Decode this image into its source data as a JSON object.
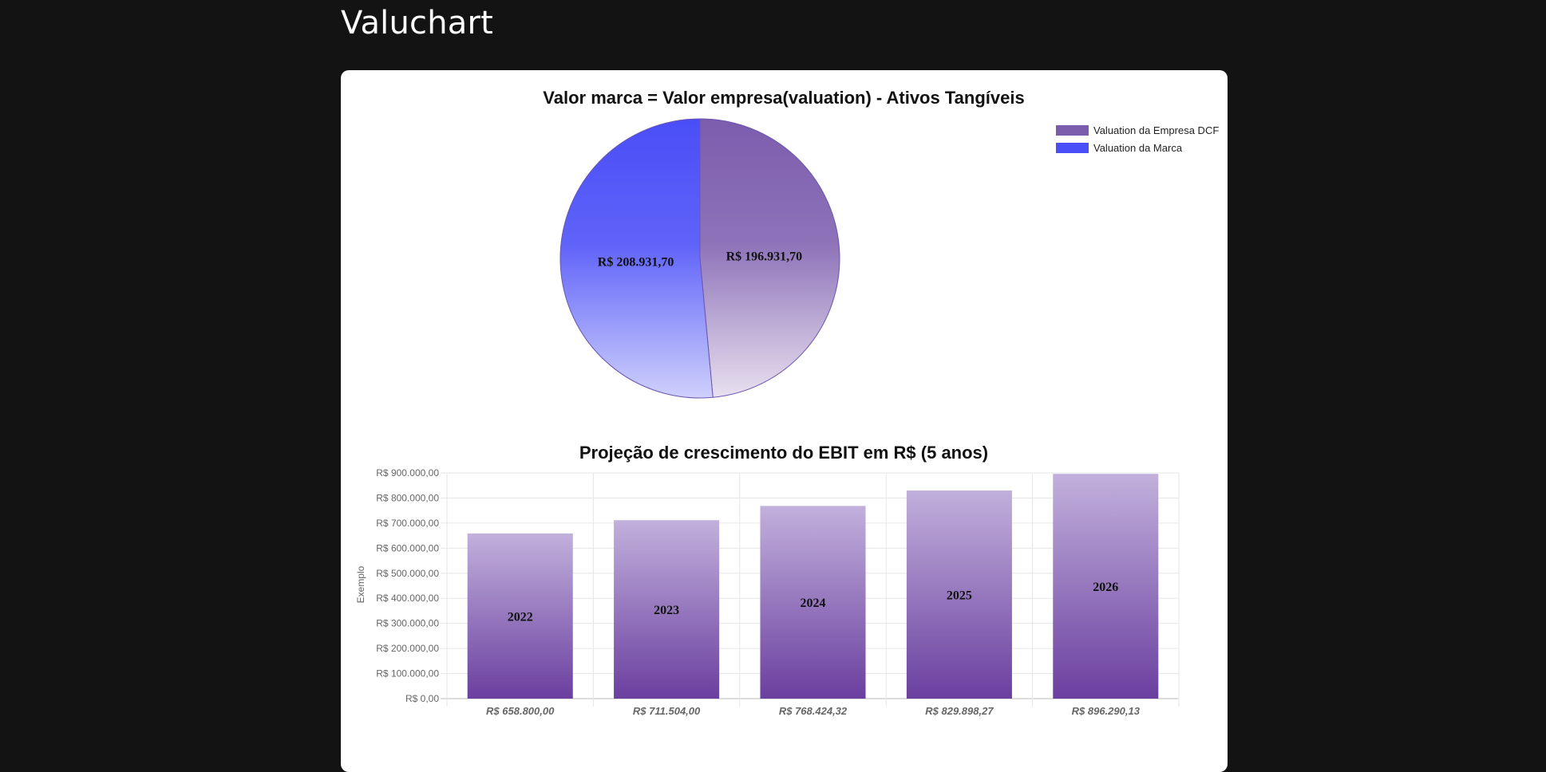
{
  "app": {
    "title": "Valuchart"
  },
  "colors": {
    "background": "#131313",
    "card": "#ffffff",
    "purple": "#7c5cad",
    "blue": "#4a4ef7",
    "grid": "#e6e6e6"
  },
  "chart_data": [
    {
      "type": "pie",
      "title": "Valor marca = Valor empresa(valuation) - Ativos Tangíveis",
      "legend_position": "top-right",
      "slices": [
        {
          "name": "Valuation da Empresa DCF",
          "value": 196931.7,
          "label": "R$ 196.931,70",
          "color": "#7c5cad"
        },
        {
          "name": "Valuation da Marca",
          "value": 208931.7,
          "label": "R$ 208.931,70",
          "color": "#4a4ef7"
        }
      ]
    },
    {
      "type": "bar",
      "title": "Projeção de crescimento do EBIT em R$ (5 anos)",
      "ylabel": "Exemplo",
      "xlabel": "",
      "ylim": [
        0,
        900000
      ],
      "grid": true,
      "yticks": [
        "R$ 0,00",
        "R$ 100.000,00",
        "R$ 200.000,00",
        "R$ 300.000,00",
        "R$ 400.000,00",
        "R$ 500.000,00",
        "R$ 600.000,00",
        "R$ 700.000,00",
        "R$ 800.000,00",
        "R$ 900.000,00"
      ],
      "categories": [
        "R$ 658.800,00",
        "R$ 711.504,00",
        "R$ 768.424,32",
        "R$ 829.898,27",
        "R$ 896.290,13"
      ],
      "values": [
        658800.0,
        711504.0,
        768424.32,
        829898.27,
        896290.13
      ],
      "bar_labels": [
        "2022",
        "2023",
        "2024",
        "2025",
        "2026"
      ]
    }
  ]
}
